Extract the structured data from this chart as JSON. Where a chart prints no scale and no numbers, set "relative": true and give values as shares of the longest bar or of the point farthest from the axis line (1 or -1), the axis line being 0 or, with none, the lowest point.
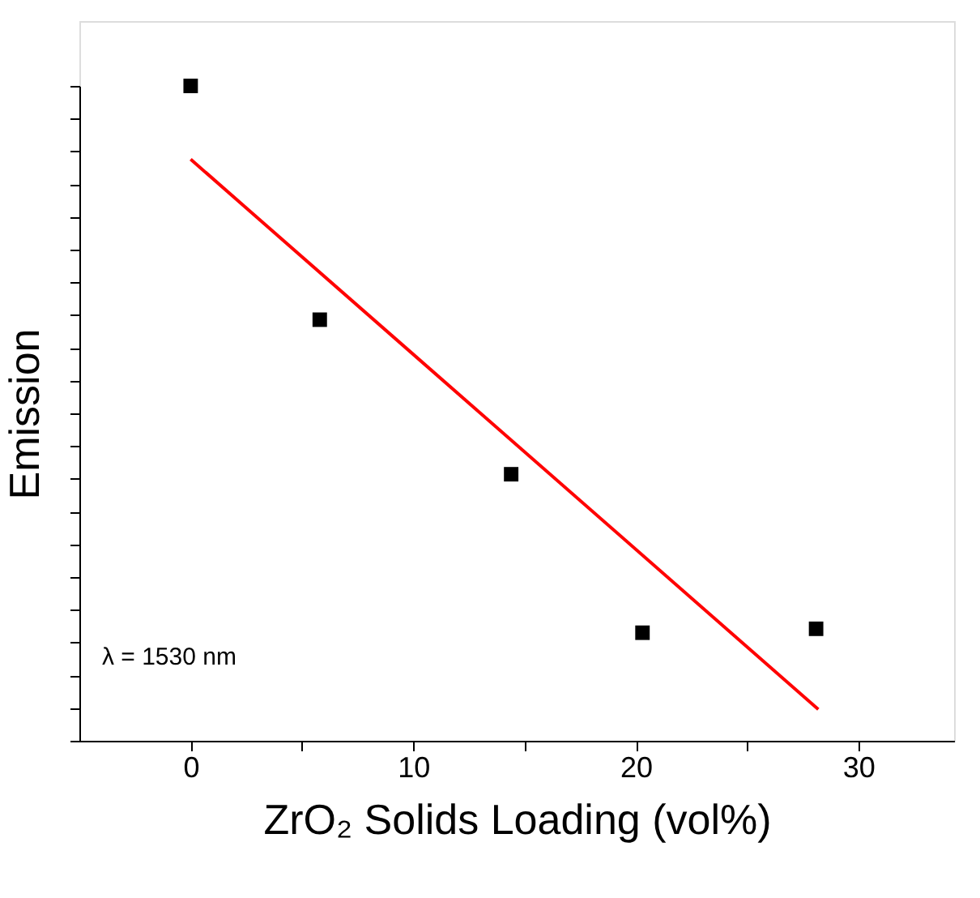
{
  "chart_data": {
    "type": "scatter",
    "relative": true,
    "xlabel": "ZrO₂ Solids Loading (vol%)",
    "ylabel": "Emission",
    "annotations": [
      "λ = 1530 nm"
    ],
    "xlim": [
      -5,
      34.3
    ],
    "xticks": [
      0,
      {
        "value": 5,
        "label": null
      },
      10,
      {
        "value": 15,
        "label": null
      },
      20,
      {
        "value": 25,
        "label": null
      },
      30
    ],
    "tick_labels": "x",
    "grid": false,
    "series": [
      {
        "marker": "square",
        "color": "#000000",
        "x": [
          0,
          5.8,
          14.4,
          20.3,
          28.1
        ],
        "values": [
          1,
          0.643,
          0.407,
          0.165,
          0.171
        ]
      },
      {
        "type": "line",
        "line_style": "solid",
        "color": "#ff0000",
        "x": [
          0,
          28.2
        ],
        "values": [
          0.888,
          0.048
        ]
      }
    ]
  }
}
